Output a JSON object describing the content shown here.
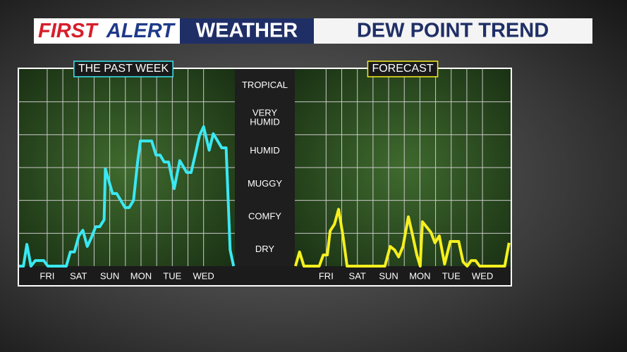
{
  "header": {
    "brand_first": "FIRST",
    "brand_alert": "ALERT",
    "section": "WEATHER",
    "title": "DEW POINT TREND"
  },
  "chart_data": [
    {
      "type": "line",
      "title": "THE PAST WEEK",
      "color": "#3ae8f2",
      "xlim": [
        -0.9,
        6
      ],
      "ylim": [
        0,
        6
      ],
      "xticks": [
        {
          "value": 0,
          "label": "FRI"
        },
        {
          "value": 1,
          "label": "SAT"
        },
        {
          "value": 2,
          "label": "SUN"
        },
        {
          "value": 3,
          "label": "MON"
        },
        {
          "value": 4,
          "label": "TUE"
        },
        {
          "value": 5,
          "label": "WED"
        }
      ],
      "yticks": [
        {
          "value": 0.5,
          "label": "DRY"
        },
        {
          "value": 1.5,
          "label": "COMFY"
        },
        {
          "value": 2.5,
          "label": "MUGGY"
        },
        {
          "value": 3.5,
          "label": "HUMID"
        },
        {
          "value": 4.5,
          "label": "VERY HUMID"
        },
        {
          "value": 5.5,
          "label": "TROPICAL"
        }
      ],
      "x": [
        -0.9,
        -0.76,
        -0.65,
        -0.52,
        -0.38,
        -0.11,
        0.02,
        0.61,
        0.74,
        0.87,
        1.01,
        1.14,
        1.28,
        1.41,
        1.55,
        1.68,
        1.82,
        1.86,
        2.09,
        2.22,
        2.49,
        2.62,
        2.76,
        2.89,
        2.98,
        3.34,
        3.48,
        3.61,
        3.74,
        3.88,
        4.06,
        4.24,
        4.46,
        4.6,
        4.73,
        4.87,
        5.0,
        5.18,
        5.31,
        5.58,
        5.72,
        5.85,
        5.96
      ],
      "values": [
        0,
        0,
        0.66,
        0,
        0.17,
        0.17,
        0,
        0,
        0.43,
        0.43,
        0.92,
        1.09,
        0.6,
        0.86,
        1.2,
        1.2,
        1.41,
        2.96,
        2.21,
        2.21,
        1.78,
        1.78,
        2.0,
        3.17,
        3.81,
        3.81,
        3.38,
        3.38,
        3.17,
        3.17,
        2.36,
        3.21,
        2.85,
        2.85,
        3.38,
        3.98,
        4.24,
        3.53,
        4.03,
        3.6,
        3.6,
        0.49,
        0
      ]
    },
    {
      "type": "line",
      "title": "FORECAST",
      "color": "#f5f01e",
      "xlim": [
        -1,
        5.9
      ],
      "ylim": [
        0,
        6
      ],
      "xticks": [
        {
          "value": 0,
          "label": "FRI"
        },
        {
          "value": 1,
          "label": "SAT"
        },
        {
          "value": 2,
          "label": "SUN"
        },
        {
          "value": 3,
          "label": "MON"
        },
        {
          "value": 4,
          "label": "TUE"
        },
        {
          "value": 5,
          "label": "WED"
        }
      ],
      "x": [
        -0.98,
        -0.85,
        -0.71,
        -0.22,
        -0.09,
        0.04,
        0.13,
        0.27,
        0.4,
        0.54,
        0.67,
        1.88,
        2.05,
        2.19,
        2.32,
        2.46,
        2.63,
        2.77,
        2.9,
        3.01,
        3.08,
        3.35,
        3.48,
        3.62,
        3.79,
        3.97,
        4.24,
        4.38,
        4.51,
        4.64,
        4.78,
        4.91,
        5.71,
        5.85
      ],
      "values": [
        0,
        0.43,
        0,
        0,
        0.34,
        0.34,
        1.07,
        1.28,
        1.73,
        0.92,
        0,
        0,
        0.6,
        0.49,
        0.28,
        0.6,
        1.5,
        0.92,
        0.34,
        0,
        1.35,
        1.03,
        0.71,
        0.92,
        0.06,
        0.75,
        0.75,
        0.13,
        0,
        0.17,
        0.17,
        0,
        0,
        0.71
      ]
    }
  ]
}
